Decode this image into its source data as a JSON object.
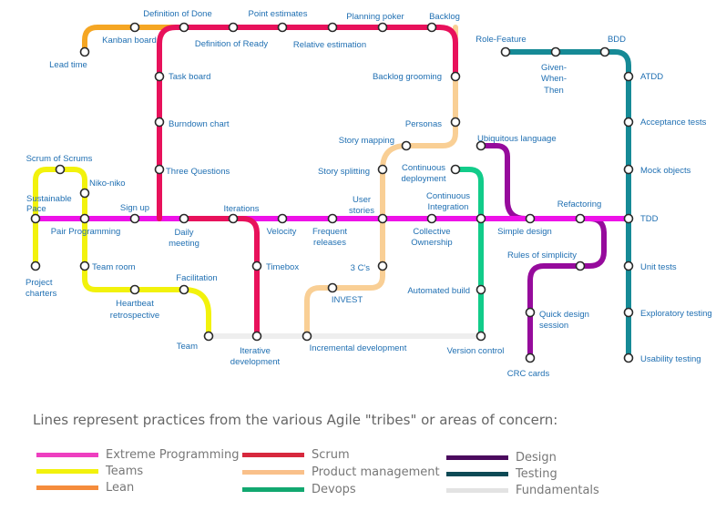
{
  "colors": {
    "extreme_programming": "#ee12e8",
    "scrum": "#e8115b",
    "teams": "#f2f20c",
    "lean": "#f5a623",
    "product_management": "#f9cf95",
    "devops": "#12cc8a",
    "design": "#960b9c",
    "testing": "#168a96",
    "fundamentals": "#eeeeee"
  },
  "stations": {
    "lead_time": "Lead time",
    "kanban_board": "Kanban board",
    "definition_of_done": "Definition of Done",
    "definition_of_ready": "Definition of Ready",
    "point_estimates": "Point estimates",
    "relative_estimation": "Relative estimation",
    "planning_poker": "Planning poker",
    "backlog": "Backlog",
    "backlog_grooming": "Backlog grooming",
    "personas": "Personas",
    "story_mapping": "Story mapping",
    "story_splitting": "Story splitting",
    "task_board": "Task board",
    "burndown_chart": "Burndown chart",
    "three_questions": "Three Questions",
    "scrum_of_scrums": "Scrum of Scrums",
    "niko_niko": "Niko-niko",
    "sustainable_pace_1": "Sustainable",
    "sustainable_pace_2": "Pace",
    "pair_programming": "Pair Programming",
    "sign_up": "Sign up",
    "daily_meeting_1": "Daily",
    "daily_meeting_2": "meeting",
    "iterations": "Iterations",
    "velocity": "Velocity",
    "frequent_releases_1": "Frequent",
    "frequent_releases_2": "releases",
    "user_stories_1": "User",
    "user_stories_2": "stories",
    "continuous_deployment_1": "Continuous",
    "continuous_deployment_2": "deployment",
    "continuous_integration_1": "Continuous",
    "continuous_integration_2": "Integration",
    "collective_ownership_1": "Collective",
    "collective_ownership_2": "Ownership",
    "ubiquitous_language": "Ubiquitous language",
    "simple_design": "Simple design",
    "refactoring": "Refactoring",
    "tdd": "TDD",
    "role_feature": "Role-Feature",
    "given_when_then_1": "Given-",
    "given_when_then_2": "When-",
    "given_when_then_3": "Then",
    "bdd": "BDD",
    "atdd": "ATDD",
    "acceptance_tests": "Acceptance tests",
    "mock_objects": "Mock objects",
    "unit_tests": "Unit tests",
    "exploratory_testing": "Exploratory testing",
    "usability_testing": "Usability testing",
    "project_charters_1": "Project",
    "project_charters_2": "charters",
    "team_room": "Team room",
    "heartbeat_retrospective_1": "Heartbeat",
    "heartbeat_retrospective_2": "retrospective",
    "facilitation": "Facilitation",
    "team": "Team",
    "timebox": "Timebox",
    "three_cs": "3 C's",
    "invest": "INVEST",
    "automated_build": "Automated build",
    "rules_of_simplicity": "Rules of simplicity",
    "quick_design_session_1": "Quick design",
    "quick_design_session_2": "session",
    "crc_cards": "CRC cards",
    "iterative_development_1": "Iterative",
    "iterative_development_2": "development",
    "incremental_development": "Incremental development",
    "version_control": "Version control"
  },
  "caption": "Lines represent practices from the various Agile \"tribes\" or areas of concern:",
  "legend": [
    {
      "label": "Extreme Programming",
      "color": "#ee3fc0"
    },
    {
      "label": "Teams",
      "color": "#f2f20c"
    },
    {
      "label": "Lean",
      "color": "#f58c3c"
    },
    {
      "label": "Scrum",
      "color": "#d7283d"
    },
    {
      "label": "Product management",
      "color": "#f9c08a"
    },
    {
      "label": "Devops",
      "color": "#12a870"
    },
    {
      "label": "Design",
      "color": "#4b0a5e"
    },
    {
      "label": "Testing",
      "color": "#0d4a55"
    },
    {
      "label": "Fundamentals",
      "color": "#e3e3e3"
    }
  ]
}
